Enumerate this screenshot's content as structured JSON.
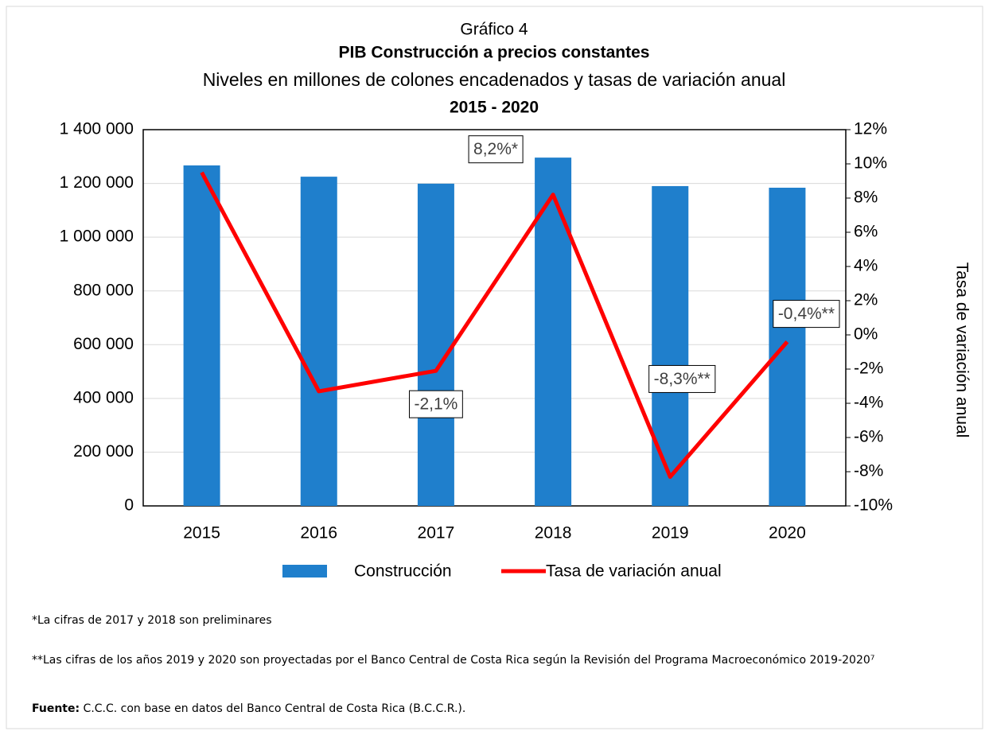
{
  "chart_data": {
    "type": "bar_line",
    "title": "Gráfico 4",
    "subtitle_bold": "PIB Construcción a precios constantes",
    "subtitle": "Niveles en millones de colones encadenados y tasas de variación anual",
    "period": "2015 - 2020",
    "y2_label": "Tasa de variación anual",
    "categories": [
      "2015",
      "2016",
      "2017",
      "2018",
      "2019",
      "2020"
    ],
    "series": [
      {
        "name": "Construcción",
        "type": "bar",
        "color": "#1f7fcc",
        "axis": "y",
        "values": [
          1267000,
          1225000,
          1199000,
          1296000,
          1190000,
          1184000
        ]
      },
      {
        "name": "Tasa de variación anual",
        "type": "line",
        "color": "#ff0000",
        "axis": "y2",
        "values": [
          9.5,
          -3.3,
          -2.1,
          8.2,
          -8.3,
          -0.4
        ],
        "value_labels": [
          null,
          null,
          "-2,1%",
          "8,2%*",
          "-8,3%**",
          "-0,4%**"
        ]
      }
    ],
    "ylim": [
      0,
      1400000
    ],
    "yticks": [
      {
        "value": 0,
        "label": "0"
      },
      {
        "value": 200000,
        "label": "200 000"
      },
      {
        "value": 400000,
        "label": "400 000"
      },
      {
        "value": 600000,
        "label": "600 000"
      },
      {
        "value": 800000,
        "label": "800 000"
      },
      {
        "value": 1000000,
        "label": "1 000 000"
      },
      {
        "value": 1200000,
        "label": "1 200 000"
      },
      {
        "value": 1400000,
        "label": "1 400 000"
      }
    ],
    "y2lim": [
      -10,
      12
    ],
    "y2ticks": [
      {
        "value": -10,
        "label": "-10%"
      },
      {
        "value": -8,
        "label": "-8%"
      },
      {
        "value": -6,
        "label": "-6%"
      },
      {
        "value": -4,
        "label": "-4%"
      },
      {
        "value": -2,
        "label": "-2%"
      },
      {
        "value": 0,
        "label": "0%"
      },
      {
        "value": 2,
        "label": "2%"
      },
      {
        "value": 4,
        "label": "4%"
      },
      {
        "value": 6,
        "label": "6%"
      },
      {
        "value": 8,
        "label": "8%"
      },
      {
        "value": 10,
        "label": "10%"
      },
      {
        "value": 12,
        "label": "12%"
      }
    ],
    "grid": true,
    "legend": "bottom"
  },
  "notes": {
    "note1": "*La cifras de 2017 y 2018 son preliminares",
    "note2": "**Las cifras de los años 2019 y 2020 son proyectadas por el Banco Central de Costa Rica según la Revisión del Programa Macroeconómico 2019-2020⁷",
    "source_label": "Fuente:",
    "source_text": "C.C.C. con base en datos del Banco Central de Costa Rica (B.C.C.R.)."
  }
}
